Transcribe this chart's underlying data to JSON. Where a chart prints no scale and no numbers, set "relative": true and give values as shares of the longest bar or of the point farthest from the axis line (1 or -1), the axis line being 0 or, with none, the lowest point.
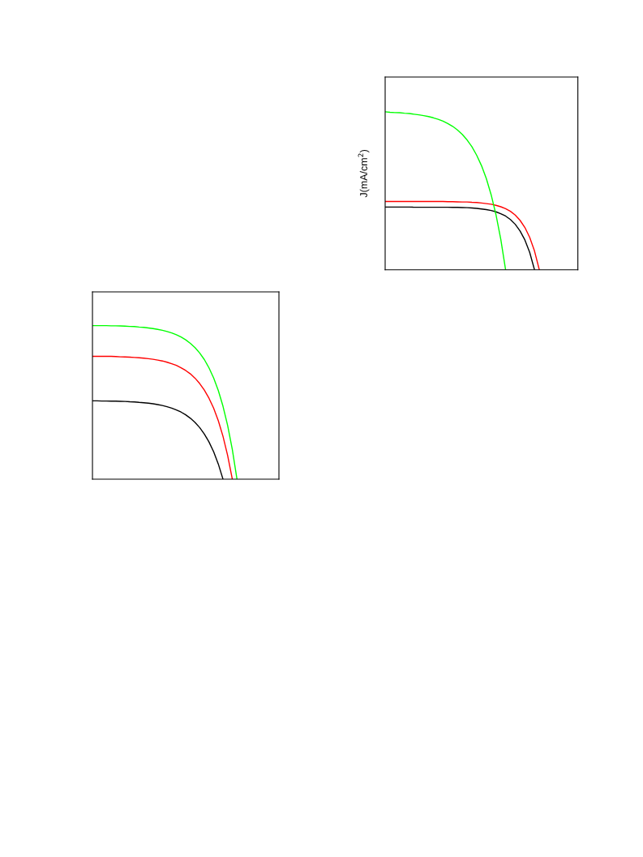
{
  "chart_data": [
    {
      "type": "line",
      "relative": true,
      "ylabel": "J(mA/cm$^{2}$)",
      "marker": "none",
      "line_style": "solid",
      "categories": [
        null,
        null,
        null,
        null,
        null,
        null,
        null,
        null,
        null,
        null,
        null,
        null,
        null,
        null,
        null,
        null,
        null,
        null,
        null,
        null,
        null,
        null,
        null,
        null,
        null,
        null,
        null,
        null,
        null,
        null,
        null,
        null,
        null,
        null,
        null,
        null,
        null,
        null,
        null,
        null,
        null
      ],
      "series": [
        {
          "color": "#000000",
          "values": [
            0.397,
            0.397,
            0.397,
            0.397,
            0.397,
            0.397,
            0.396,
            0.396,
            0.396,
            0.396,
            0.396,
            0.396,
            0.396,
            0.396,
            0.395,
            0.395,
            0.394,
            0.393,
            0.391,
            0.389,
            0.385,
            0.381,
            0.375,
            0.367,
            0.355,
            0.34,
            0.318,
            0.288,
            0.246,
            0.189,
            0.11,
            0,
            null,
            null,
            null,
            null,
            null,
            null,
            null,
            null,
            null
          ]
        },
        {
          "color": "#ff0000",
          "values": [
            0.432,
            0.432,
            0.432,
            0.432,
            0.432,
            0.432,
            0.432,
            0.432,
            0.432,
            0.432,
            0.432,
            0.432,
            0.432,
            0.431,
            0.431,
            0.43,
            0.429,
            0.429,
            0.427,
            0.426,
            0.423,
            0.419,
            0.415,
            0.408,
            0.399,
            0.387,
            0.37,
            0.346,
            0.313,
            0.268,
            0.205,
            0.119,
            0,
            null,
            null,
            null,
            null,
            null,
            null,
            null,
            null
          ]
        },
        {
          "color": "#00ff00",
          "values": [
            1,
            0.997,
            0.995,
            0.994,
            0.991,
            0.989,
            0.985,
            0.981,
            0.976,
            0.97,
            0.962,
            0.953,
            0.941,
            0.926,
            0.908,
            0.885,
            0.857,
            0.822,
            0.779,
            0.725,
            0.659,
            0.577,
            0.475,
            0.349,
            0.193,
            0,
            null,
            null,
            null,
            null,
            null,
            null,
            null,
            null,
            null,
            null,
            null,
            null,
            null,
            null,
            null
          ]
        }
      ]
    },
    {
      "type": "line",
      "relative": true,
      "marker": "none",
      "line_style": "solid",
      "categories": [
        null,
        null,
        null,
        null,
        null,
        null,
        null,
        null,
        null,
        null,
        null,
        null,
        null,
        null,
        null,
        null,
        null,
        null,
        null,
        null,
        null,
        null,
        null,
        null,
        null,
        null,
        null,
        null,
        null,
        null,
        null,
        null,
        null,
        null,
        null,
        null,
        null,
        null,
        null,
        null,
        null
      ],
      "series": [
        {
          "color": "#000000",
          "values": [
            0.51,
            0.51,
            0.509,
            0.509,
            0.508,
            0.508,
            0.507,
            0.506,
            0.504,
            0.503,
            0.5,
            0.498,
            0.495,
            0.491,
            0.486,
            0.48,
            0.472,
            0.463,
            0.451,
            0.437,
            0.419,
            0.397,
            0.37,
            0.336,
            0.294,
            0.242,
            0.178,
            0.098,
            0,
            null,
            null,
            null,
            null,
            null,
            null,
            null,
            null,
            null,
            null,
            null,
            null
          ]
        },
        {
          "color": "#ff0000",
          "values": [
            0.8,
            0.8,
            0.8,
            0.8,
            0.8,
            0.799,
            0.797,
            0.796,
            0.795,
            0.793,
            0.791,
            0.788,
            0.785,
            0.781,
            0.776,
            0.77,
            0.762,
            0.752,
            0.741,
            0.726,
            0.708,
            0.686,
            0.658,
            0.623,
            0.58,
            0.527,
            0.462,
            0.38,
            0.279,
            0.154,
            0,
            null,
            null,
            null,
            null,
            null,
            null,
            null,
            null,
            null,
            null
          ]
        },
        {
          "color": "#00ff00",
          "values": [
            1,
            1,
            1,
            1,
            0.999,
            0.999,
            0.998,
            0.997,
            0.995,
            0.994,
            0.991,
            0.989,
            0.985,
            0.981,
            0.976,
            0.97,
            0.962,
            0.953,
            0.941,
            0.926,
            0.908,
            0.885,
            0.857,
            0.822,
            0.779,
            0.725,
            0.659,
            0.577,
            0.475,
            0.349,
            0.193,
            0,
            null,
            null,
            null,
            null,
            null,
            null,
            null,
            null,
            null
          ]
        }
      ]
    }
  ]
}
